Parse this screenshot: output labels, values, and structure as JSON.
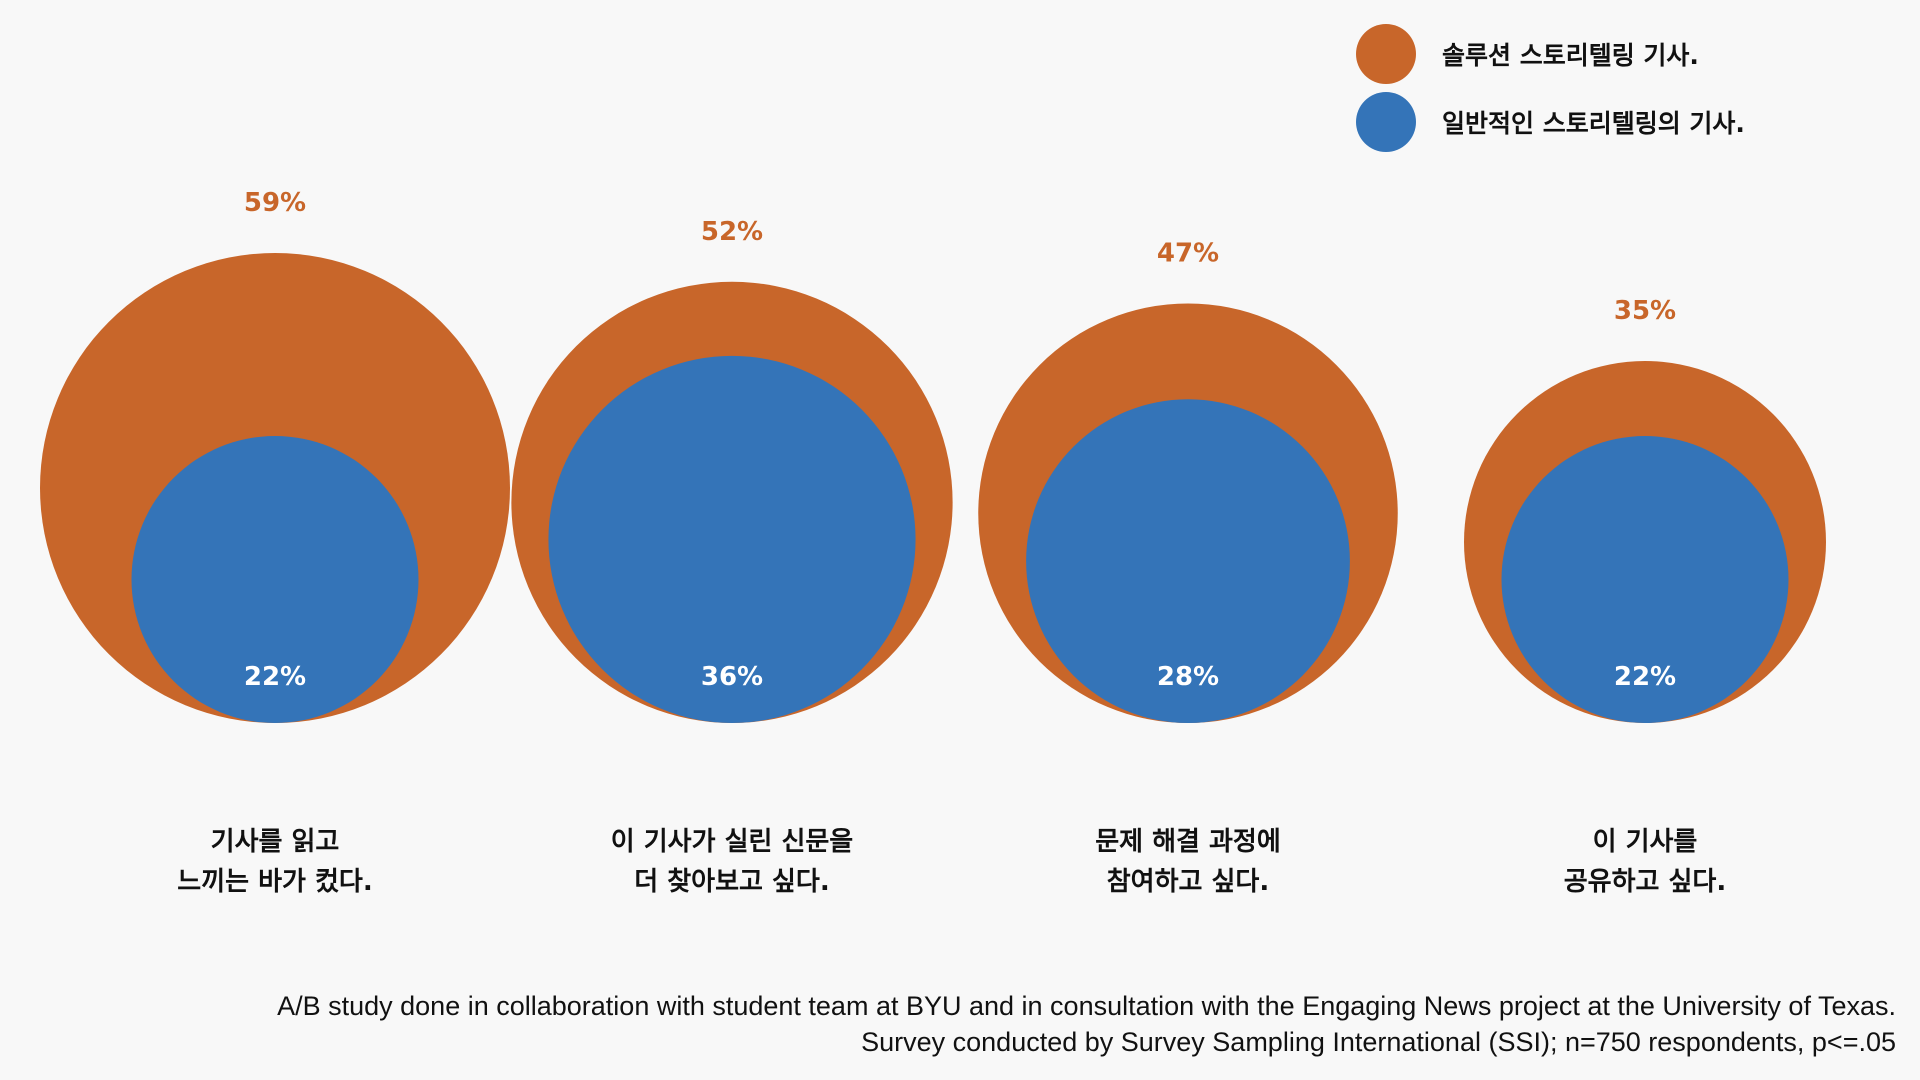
{
  "legend": {
    "solution_label": "솔루션 스토리텔링 기사.",
    "general_label": "일반적인 스토리텔링의 기사."
  },
  "colors": {
    "solution": "#c8662a",
    "general": "#3474b8"
  },
  "chart_data": {
    "type": "nested-bubble",
    "unit": "%",
    "series": [
      {
        "name": "솔루션 스토리텔링 기사.",
        "values": [
          59,
          52,
          47,
          35
        ]
      },
      {
        "name": "일반적인 스토리텔링의 기사.",
        "values": [
          22,
          36,
          28,
          22
        ]
      }
    ],
    "categories": [
      [
        "기사를 읽고",
        "느끼는 바가 컸다."
      ],
      [
        "이 기사가 실린 신문을",
        "더 찾아보고 싶다."
      ],
      [
        "문제 해결 과정에",
        "참여하고 싶다."
      ],
      [
        "이 기사를",
        "공유하고 싶다."
      ]
    ],
    "legend_position": "top-right"
  },
  "footnote": {
    "line1": "A/B study done in collaboration with student team at BYU and in consultation with the Engaging News project at the University of Texas.",
    "line2": "Survey conducted by Survey Sampling International (SSI); n=750 respondents, p<=.05"
  }
}
